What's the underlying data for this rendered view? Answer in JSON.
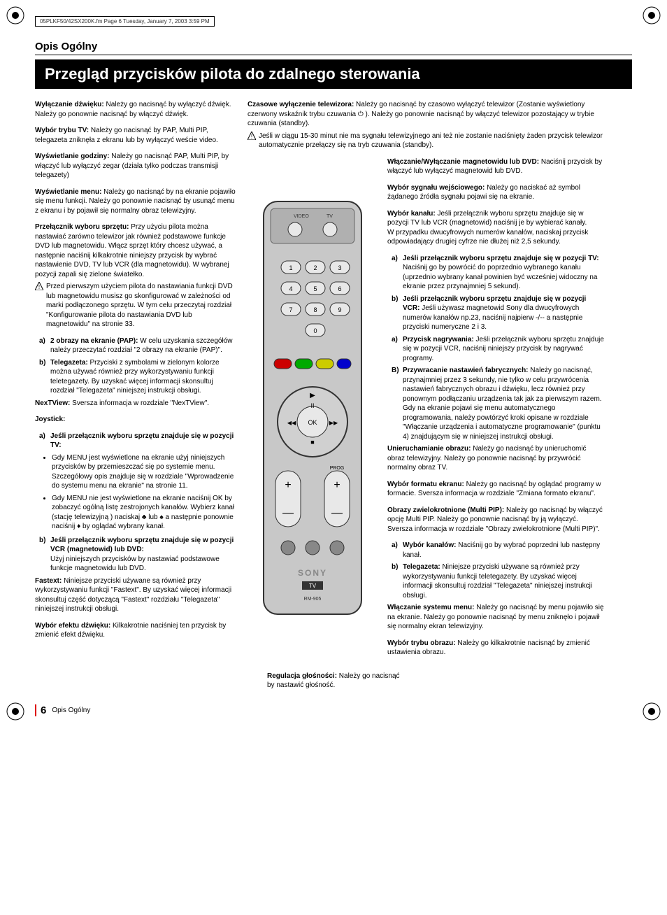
{
  "meta": {
    "header_text": "05PLKF50/42SX200K.fm  Page 6  Tuesday, January 7, 2003  3:59 PM"
  },
  "page": {
    "section_head": "Opis Ogólny",
    "main_title": "Przegląd przycisków pilota do zdalnego sterowania",
    "number": "6",
    "footer_label": "Opis Ogólny"
  },
  "left": {
    "p1_b": "Wyłączanie dźwięku:",
    "p1": " Należy go nacisnąć by wyłączyć dźwięk. Należy go ponownie nacisnąć by włączyć dźwięk.",
    "p2_b": "Wybór trybu TV:",
    "p2": " Należy go nacisnąć by PAP, Multi PIP, telegazeta zniknęła z ekranu lub by wyłączyć weście video.",
    "p3_b": "Wyświetlanie godziny:",
    "p3": " Należy go nacisnąć PAP, Multi PIP, by włączyć lub wyłączyć zegar (działa tylko podczas transmisji telegazety)",
    "p4_b": "Wyświetlanie menu:",
    "p4": " Należy go nacisnąć by na ekranie pojawiło się menu funkcji. Należy go ponownie nacisnąć by usunąć menu z ekranu i by pojawił się normalny obraz telewizyjny.",
    "p5_b": "Przełącznik wyboru sprzętu:",
    "p5": " Przy użyciu pilota można nastawiać zarówno telewizor jak również podstawowe funkcje DVD lub magnetowidu. Włącz sprzęt który chcesz używać, a następnie naciśnij  kilkakrotnie niniejszy przycisk by wybrać nastawienie  DVD, TV lub VCR (dla magnetowidu). W wybranej pozycji zapali się zielone światełko.",
    "p5_warn": "Przed pierwszym użyciem pilota do nastawiania funkcji  DVD lub magnetowidu musisz go skonfigurować w zależności od marki podłączonego sprzętu. W tym celu przeczytaj rozdział \"Konfigurowanie pilota do nastawiania DVD lub magnetowidu\" na stronie 33.",
    "a_lbl": "a)",
    "a_b": "2 obrazy na ekranie (PAP):",
    "a": " W celu uzyskania szczegółów należy przeczytać rozdział \"2 obrazy na ekranie (PAP)\".",
    "b_lbl": "b)",
    "b_b": "Telegazeta:",
    "b": " Przyciski z symbolami w zielonym kolorze można używać również przy wykorzystywaniu funkcji teletegazety. By uzyskać więcej informacji skonsultuj rozdział \"Telegazeta\" niniejszej instrukcji obsługi.",
    "p6_b": "NexTView:",
    "p6": " Sversza informacja w rozdziale \"NexTView\".",
    "joy_head": "Joystick:",
    "ja_lbl": "a)",
    "ja_b": "Jeśli  przełącznik wyboru sprzętu znajduje się w pozycji TV:",
    "ja_bul1": "Gdy MENU jest wyświetlone na ekranie użyj  niniejszych przycisków by przemieszczać się  po systemie menu. Szczegółowy opis znajduje się  w rozdziale \"Wprowadzenie do systemu menu na ekranie\" na stronie 11.",
    "ja_bul2": "Gdy MENU nie jest wyświetlone na ekranie naciśnij  OK by zobaczyć ogólną listę zestrojonych kanałów.  Wybierz kanał (stację telewizyjną ) naciskaj ♣ lub ♠ a następnie  ponownie naciśnij ♦ by oglądać wybrany kanał.",
    "jb_lbl": "b)",
    "jb_b": "Jeśli przełącznik wyboru sprzętu znajduje się w pozycji  VCR (magnetowid) lub  DVD:",
    "jb": "Użyj niniejszych przycisków by  nastawiać podstawowe funkcje magnetowidu lub DVD.",
    "p7_b": "Fastext:",
    "p7": " Niniejsze przyciski używane są również przy wykorzystywaniu funkcji \"Fastext\". By uzyskać więcej informacji skonsultuj część dotyczącą \"Fastext\" rozdziału \"Telegazeta\" niniejszej instrukcji obsługi.",
    "p8_b": "Wybór efektu dźwięku:",
    "p8": " Kilkakrotnie naciśniej ten przycisk by zmienić efekt  dźwięku."
  },
  "right_top": {
    "p1_b": "Czasowe wyłączenie telewizora:",
    "p1": " Należy go nacisnąć by czasowo wyłączyć telewizor (Zostanie wyświetlony czerwony wskaźnik trybu czuwania  ⏻ ). Należy go ponownie nacisnąć by włączyć telewizor pozostający w trybie czuwania (standby).",
    "warn": "Jeśli w ciągu 15-30 minut nie ma sygnału telewizyjnego ani też nie zostanie naciśnięty żaden przycisk telewizor automatycznie przełączy się na tryb czuwania (standby)."
  },
  "right": {
    "p1_b": "Włączanie/Wyłączanie magnetowidu lub DVD:",
    "p1": " Naciśnij przycisk by włączyć lub wyłączyć magnetowid lub DVD.",
    "p2_b": "Wybór sygnału wejściowego:",
    "p2": " Należy go naciskać aż symbol żądanego źródła sygnału pojawi się na ekranie.",
    "p3_b": "Wybór kanału:",
    "p3": " Jeśli przełącznik wyboru sprzętu znajduje  się w pozycji TV lub VCR (magnetowid) naciśnij je by wybierać kanały.\nW przypadku dwucyfrowych numerów kanałów, naciskaj przycisk odpowiadający drugiej cyfrze nie dłużej niż  2,5 sekundy.",
    "p3a_lbl": "a)",
    "p3a_b": "Jeśli przełącznik wyboru sprzętu znajduje się w pozycji TV:",
    "p3a": " Naciśnij go by powrócić do poprzednio wybranego kanału (uprzednio wybrany kanał powinien być wcześniej widoczny na ekranie przez przynajmniej 5 sekund).",
    "p3b_lbl": "b)",
    "p3b_b": "Jeśli przełącznik wyboru sprzętu znajduje się w pozycji VCR:",
    "p3b": " Jeśli używasz magnetowid Sony dla dwucyfrowych numerów kanałów np.23,  naciśnij najpierw -/-- a następnie przyciski numeryczne 2 i 3.",
    "p4a_lbl": "a)",
    "p4a_b": "Przycisk nagrywania:",
    "p4a": " Jeśli przełącznik wyboru sprzętu znajduje się w pozycji  VCR, naciśnij niniejszy przycisk by nagrywać programy.",
    "p4b_lbl": "B)",
    "p4b_b": "Przywracanie nastawień fabrycznych:",
    "p4b": " Należy go nacisnąć, przynajmniej przez 3 sekundy, nie tylko w celu przywrócenia nastawień fabrycznych obrazu i dźwięku, lecz również przy ponownym podłączaniu urządzenia tak  jak  za pierwszym razem. Gdy na ekranie pojawi się menu automatycznego programowania, należy powtórzyć kroki opisane w rozdziale \"Włączanie urządzenia i automatyczne programowanie\" (punktu 4) znajdującym się w niniejszej instrukcji obsługi.",
    "p5_b": "Unieruchamianie obrazu:",
    "p5": " Należy go nacisnąć by unieruchomić obraz telewizyjny. Należy go ponownie nacisnąć by przywrócić normalny obraz TV.",
    "p6_b": "Wybór formatu ekranu:",
    "p6": " Należy go nacisnąć by oglądać programy w formacie. Sversza informacja w rozdziale \"Zmiana formato ekranu\".",
    "p7_b": "Obrazy zwielokrotnione (Multi PIP):",
    "p7": " Należy go nacisnąć by włączyć opcję Multi PIP. Należy go ponownie nacisnąć by ją wyłączyć. Sversza informacja w rozdziale \"Obrazy zwielokrotnione (Multi PIP)\".",
    "p7a_lbl": "a)",
    "p7a_b": "Wybór kanałów:",
    "p7a": " Naciśnij go by wybrać poprzedni lub następny kanał.",
    "p7b_lbl": "b)",
    "p7b_b": "Telegazeta:",
    "p7b": " Niniejsze przyciski używane są również przy wykorzystywaniu funkcji teletegazety. By uzyskać więcej informacji skonsultuj rozdział \"Telegazeta\" niniejszej instrukcji obsługi.",
    "p8_b": "Włączanie systemu menu:",
    "p8": " Należy go nacisnąć by menu pojawiło się na ekranie. Należy go ponownie nacisnąć by menu zniknęło i pojawił się normalny ekran telewizyjny.",
    "p9_b": "Wybór trybu obrazu:",
    "p9": " Należy go kilkakrotnie nacisnąć by zmienić ustawienia obrazu."
  },
  "bottom": {
    "vol_b": "Regulacja głośności:",
    "vol": " Należy go nacisnąć by nastawić głośność."
  },
  "remote": {
    "video_label": "VIDEO",
    "tv_label": "TV",
    "digits": [
      "1",
      "2",
      "3",
      "4",
      "5",
      "6",
      "7",
      "8",
      "9",
      "0"
    ],
    "ok": "OK",
    "prog": "PROG",
    "plus": "+",
    "minus": "—",
    "brand": "SONY",
    "sub_brand": "TV",
    "model": "RM-905",
    "play": "▶",
    "pause": "II",
    "stop": "■",
    "rew": "◀◀",
    "ff": "▶▶",
    "colors": {
      "body": "#c8c8c8",
      "button": "#e8e8e8",
      "dark_button": "#888",
      "accent": "#333"
    }
  },
  "svg": {
    "stroke": "#000",
    "fill_dark": "#000"
  }
}
